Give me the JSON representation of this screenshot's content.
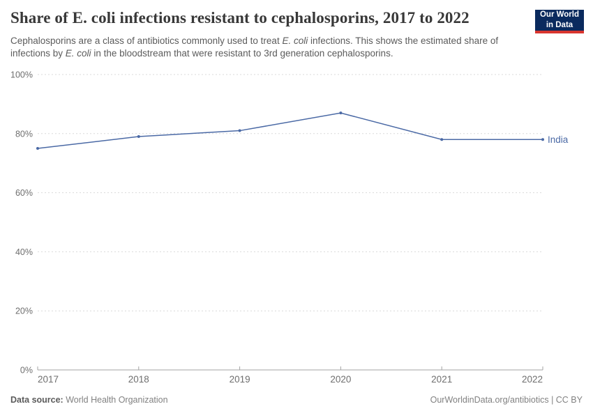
{
  "header": {
    "subtitle_parts": [
      {
        "text": "Cephalosporins are a class of antibiotics commonly used to treat ",
        "italic": false
      },
      {
        "text": "E. coli",
        "italic": true
      },
      {
        "text": " infections. This shows the estimated share of infections by ",
        "italic": false
      },
      {
        "text": "E. coli",
        "italic": true
      },
      {
        "text": " in the bloodstream that were resistant to 3rd generation cephalosporins.",
        "italic": false
      }
    ],
    "logo": {
      "line1": "Our World",
      "line2": "in Data",
      "bg_color": "#0a2a5e",
      "bar_color": "#d8352f"
    }
  },
  "chart_data": {
    "type": "line",
    "title": "Share of E. coli infections resistant to cephalosporins, 2017 to 2022",
    "x": [
      2017,
      2018,
      2019,
      2020,
      2021,
      2022
    ],
    "series": [
      {
        "name": "India",
        "values": [
          75,
          79,
          81,
          87,
          78,
          78
        ],
        "color": "#4a69a5"
      }
    ],
    "xlabel": "",
    "ylabel": "",
    "ylim": [
      0,
      100
    ],
    "yticks": [
      0,
      20,
      40,
      60,
      80,
      100
    ],
    "ytick_suffix": "%",
    "grid": true,
    "grid_style": "dashed",
    "legend_position": "end-of-line-label",
    "colors": {
      "line": "#4a69a5",
      "grid": "#d9d9d9",
      "axis": "#a3a3a3",
      "tick_label": "#6e6e6e"
    }
  },
  "footer": {
    "source_label": "Data source:",
    "source_value": "World Health Organization",
    "credit": "OurWorldinData.org/antibiotics | CC BY"
  }
}
